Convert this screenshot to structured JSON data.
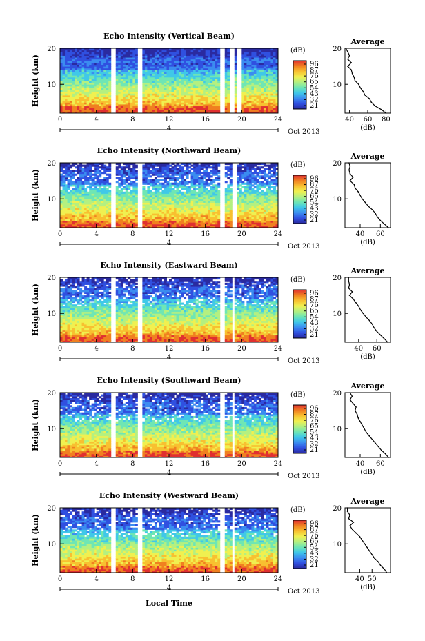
{
  "figure": {
    "xlabel": "Local Time",
    "date_label": "Oct 2013",
    "day_marker": "4"
  },
  "colorbar": {
    "unit": "(dB)",
    "ticks": [
      "96",
      "87",
      "76",
      "65",
      "54",
      "43",
      "32",
      "21"
    ],
    "colors": [
      "#2a2aa0",
      "#3050e0",
      "#3b8cf0",
      "#40c8e8",
      "#6fe6b4",
      "#b4f080",
      "#f0f050",
      "#f8c030",
      "#f08020",
      "#e03030"
    ]
  },
  "chart_data": [
    {
      "type": "heatmap",
      "title": "Echo Intensity (Vertical Beam)",
      "ylabel": "Height (km)",
      "xlim": [
        0,
        24
      ],
      "ylim": [
        2,
        20
      ],
      "xticks": [
        0,
        4,
        8,
        12,
        16,
        20,
        24
      ],
      "yticks": [
        10,
        20
      ],
      "gaps_hours": [
        [
          5.6,
          6.1
        ],
        [
          8.6,
          9.2
        ],
        [
          17.6,
          18.1
        ],
        [
          18.8,
          19.2
        ],
        [
          19.6,
          20.0
        ]
      ],
      "top_km": 20,
      "profile": {
        "title": "Average",
        "xlabel": "(dB)",
        "xlim": [
          35,
          85
        ],
        "xticks": [
          40,
          60,
          80
        ],
        "yticks": [
          10,
          20
        ],
        "height_km": [
          2,
          3,
          4,
          5,
          6,
          7,
          8,
          9,
          10,
          11,
          12,
          13,
          14,
          15,
          16,
          17,
          18,
          19,
          20
        ],
        "db": [
          80,
          75,
          68,
          64,
          62,
          57,
          55,
          52,
          50,
          46,
          45,
          43,
          42,
          38,
          42,
          38,
          40,
          38,
          36
        ]
      }
    },
    {
      "type": "heatmap",
      "title": "Echo Intensity (Northward Beam)",
      "ylabel": "Height (km)",
      "xlim": [
        0,
        24
      ],
      "ylim": [
        2,
        20
      ],
      "xticks": [
        0,
        4,
        8,
        12,
        16,
        20,
        24
      ],
      "yticks": [
        10,
        20
      ],
      "gaps_hours": [
        [
          5.6,
          6.1
        ],
        [
          8.6,
          9.2
        ],
        [
          17.6,
          18.1
        ],
        [
          19.0,
          19.4
        ]
      ],
      "top_km": 16,
      "profile": {
        "title": "Average",
        "xlabel": "(dB)",
        "xlim": [
          25,
          70
        ],
        "xticks": [
          40,
          60
        ],
        "yticks": [
          10,
          20
        ],
        "height_km": [
          2,
          3,
          4,
          5,
          6,
          7,
          8,
          9,
          10,
          11,
          12,
          13,
          14,
          15,
          16,
          17,
          18,
          19,
          20
        ],
        "db": [
          68,
          64,
          60,
          57,
          55,
          52,
          48,
          45,
          42,
          40,
          38,
          35,
          34,
          30,
          33,
          30,
          29,
          30,
          29
        ]
      }
    },
    {
      "type": "heatmap",
      "title": "Echo Intensity (Eastward Beam)",
      "ylabel": "Height (km)",
      "xlim": [
        0,
        24
      ],
      "ylim": [
        2,
        20
      ],
      "xticks": [
        0,
        4,
        8,
        12,
        16,
        20,
        24
      ],
      "yticks": [
        10,
        20
      ],
      "gaps_hours": [
        [
          5.6,
          6.1
        ],
        [
          8.6,
          9.2
        ],
        [
          17.6,
          18.1
        ],
        [
          18.9,
          19.3
        ]
      ],
      "top_km": 16,
      "profile": {
        "title": "Average",
        "xlabel": "(dB)",
        "xlim": [
          25,
          75
        ],
        "xticks": [
          40,
          60
        ],
        "yticks": [
          10,
          20
        ],
        "height_km": [
          2,
          3,
          4,
          5,
          6,
          7,
          8,
          9,
          10,
          11,
          12,
          13,
          14,
          15,
          16,
          17,
          18,
          19,
          20
        ],
        "db": [
          72,
          68,
          64,
          60,
          57,
          55,
          52,
          48,
          45,
          42,
          40,
          37,
          34,
          30,
          33,
          29,
          30,
          29,
          29
        ]
      }
    },
    {
      "type": "heatmap",
      "title": "Echo Intensity (Southward Beam)",
      "ylabel": "Height (km)",
      "xlim": [
        0,
        24
      ],
      "ylim": [
        2,
        20
      ],
      "xticks": [
        0,
        4,
        8,
        12,
        16,
        20,
        24
      ],
      "yticks": [
        10,
        20
      ],
      "gaps_hours": [
        [
          5.6,
          6.1
        ],
        [
          8.6,
          9.2
        ],
        [
          17.6,
          18.1
        ],
        [
          18.9,
          19.3
        ]
      ],
      "top_km": 16,
      "profile": {
        "title": "Average",
        "xlabel": "(dB)",
        "xlim": [
          25,
          70
        ],
        "xticks": [
          40,
          60
        ],
        "yticks": [
          10,
          20
        ],
        "height_km": [
          2,
          3,
          4,
          5,
          6,
          7,
          8,
          9,
          10,
          11,
          12,
          13,
          14,
          15,
          16,
          17,
          18,
          19,
          20
        ],
        "db": [
          68,
          65,
          61,
          58,
          55,
          52,
          49,
          46,
          44,
          42,
          40,
          38,
          37,
          35,
          36,
          33,
          30,
          32,
          30
        ]
      }
    },
    {
      "type": "heatmap",
      "title": "Echo Intensity (Westward Beam)",
      "ylabel": "Height (km)",
      "xlim": [
        0,
        24
      ],
      "ylim": [
        2,
        20
      ],
      "xticks": [
        0,
        4,
        8,
        12,
        16,
        20,
        24
      ],
      "yticks": [
        10,
        20
      ],
      "gaps_hours": [
        [
          5.6,
          6.1
        ],
        [
          8.6,
          9.2
        ],
        [
          17.6,
          18.1
        ],
        [
          18.9,
          19.3
        ]
      ],
      "top_km": 16,
      "profile": {
        "title": "Average",
        "xlabel": "(dB)",
        "xlim": [
          28,
          65
        ],
        "xticks": [
          40,
          50
        ],
        "yticks": [
          10,
          20
        ],
        "height_km": [
          2,
          3,
          4,
          5,
          6,
          7,
          8,
          9,
          10,
          11,
          12,
          13,
          14,
          15,
          16,
          17,
          18,
          19,
          20
        ],
        "db": [
          62,
          60,
          57,
          55,
          52,
          50,
          48,
          46,
          44,
          42,
          40,
          37,
          34,
          32,
          35,
          31,
          32,
          30,
          30
        ]
      }
    }
  ]
}
